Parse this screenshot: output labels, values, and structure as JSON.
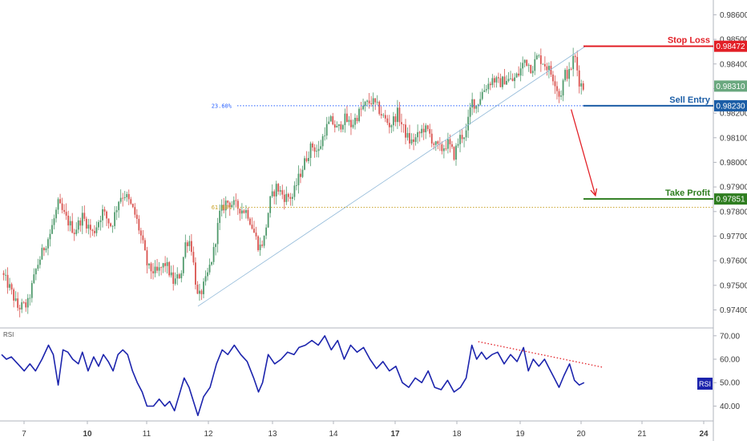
{
  "chart_data": [
    {
      "type": "candlestick",
      "ylim": [
        0.9733,
        0.9866
      ],
      "price_ticks": [
        "0.97400",
        "0.97500",
        "0.97600",
        "0.97700",
        "0.97800",
        "0.97900",
        "0.98000",
        "0.98100",
        "0.98200",
        "0.98300",
        "0.98400",
        "0.98500",
        "0.98600"
      ],
      "x_ticks": [
        {
          "label": "7",
          "bold": false
        },
        {
          "label": "10",
          "bold": true
        },
        {
          "label": "11",
          "bold": false
        },
        {
          "label": "12",
          "bold": false
        },
        {
          "label": "13",
          "bold": false
        },
        {
          "label": "14",
          "bold": false
        },
        {
          "label": "17",
          "bold": true
        },
        {
          "label": "18",
          "bold": false
        },
        {
          "label": "19",
          "bold": false
        },
        {
          "label": "20",
          "bold": false
        },
        {
          "label": "21",
          "bold": false
        },
        {
          "label": "24",
          "bold": true
        }
      ],
      "anchors": [
        [
          0.0,
          0.9755
        ],
        [
          1.0,
          0.9749
        ],
        [
          2.0,
          0.9741
        ],
        [
          3.2,
          0.9742
        ],
        [
          4.3,
          0.9757
        ],
        [
          5.2,
          0.9765
        ],
        [
          6.0,
          0.9771
        ],
        [
          7.0,
          0.9783
        ],
        [
          8.0,
          0.9777
        ],
        [
          9.0,
          0.9772
        ],
        [
          10.0,
          0.9778
        ],
        [
          11.3,
          0.9771
        ],
        [
          12.5,
          0.978
        ],
        [
          13.6,
          0.9774
        ],
        [
          14.6,
          0.9786
        ],
        [
          15.3,
          0.9787
        ],
        [
          16.2,
          0.9781
        ],
        [
          16.6,
          0.9778
        ],
        [
          17.4,
          0.9768
        ],
        [
          18.1,
          0.9757
        ],
        [
          19.2,
          0.9755
        ],
        [
          20.3,
          0.9759
        ],
        [
          21.3,
          0.9751
        ],
        [
          22.2,
          0.9755
        ],
        [
          22.8,
          0.9768
        ],
        [
          23.4,
          0.9768
        ],
        [
          24.3,
          0.9744
        ],
        [
          25.3,
          0.9752
        ],
        [
          26.2,
          0.9763
        ],
        [
          27.0,
          0.9779
        ],
        [
          27.8,
          0.9784
        ],
        [
          28.6,
          0.9783
        ],
        [
          29.6,
          0.9781
        ],
        [
          30.4,
          0.978
        ],
        [
          31.3,
          0.9771
        ],
        [
          31.9,
          0.9765
        ],
        [
          32.5,
          0.9769
        ],
        [
          33.2,
          0.9784
        ],
        [
          34.0,
          0.979
        ],
        [
          35.0,
          0.9786
        ],
        [
          36.0,
          0.9786
        ],
        [
          36.8,
          0.9794
        ],
        [
          37.6,
          0.9801
        ],
        [
          38.4,
          0.9807
        ],
        [
          39.2,
          0.9804
        ],
        [
          40.0,
          0.9813
        ],
        [
          40.8,
          0.9817
        ],
        [
          41.6,
          0.9813
        ],
        [
          42.4,
          0.9818
        ],
        [
          43.3,
          0.9815
        ],
        [
          44.2,
          0.982
        ],
        [
          44.9,
          0.9823
        ],
        [
          45.8,
          0.9825
        ],
        [
          46.6,
          0.9822
        ],
        [
          47.3,
          0.9818
        ],
        [
          48.1,
          0.9815
        ],
        [
          49.0,
          0.982
        ],
        [
          49.8,
          0.9813
        ],
        [
          50.6,
          0.9808
        ],
        [
          51.4,
          0.981
        ],
        [
          52.2,
          0.9814
        ],
        [
          52.9,
          0.9812
        ],
        [
          53.6,
          0.9807
        ],
        [
          54.4,
          0.9805
        ],
        [
          55.2,
          0.9808
        ],
        [
          56.0,
          0.9803
        ],
        [
          56.7,
          0.981
        ],
        [
          57.5,
          0.9812
        ],
        [
          58.2,
          0.9825
        ],
        [
          58.8,
          0.9823
        ],
        [
          59.4,
          0.9828
        ],
        [
          60.0,
          0.9831
        ],
        [
          60.8,
          0.9834
        ],
        [
          61.6,
          0.9832
        ],
        [
          62.4,
          0.9834
        ],
        [
          63.2,
          0.9833
        ],
        [
          64.0,
          0.9836
        ],
        [
          64.8,
          0.9842
        ],
        [
          65.6,
          0.9838
        ],
        [
          66.3,
          0.9843
        ],
        [
          67.0,
          0.9841
        ],
        [
          67.7,
          0.9838
        ],
        [
          68.5,
          0.9833
        ],
        [
          69.1,
          0.9826
        ],
        [
          69.7,
          0.9836
        ],
        [
          70.3,
          0.9836
        ],
        [
          70.9,
          0.9844
        ],
        [
          71.5,
          0.9833
        ],
        [
          72.1,
          0.983
        ]
      ],
      "levels": [
        {
          "name": "Stop Loss",
          "price": 0.98472,
          "label": "0.98472",
          "color": "#e21f26"
        },
        {
          "name": "Sell Entry",
          "price": 0.9823,
          "label": "0.98230",
          "color": "#1b5da6"
        },
        {
          "name": "Take Profit",
          "price": 0.97851,
          "label": "0.97851",
          "color": "#2e7d1f"
        }
      ],
      "fib_levels": [
        {
          "label": "23.60%",
          "price": 0.9823,
          "color": "#2962ff"
        },
        {
          "label": "61.80%",
          "price": 0.97817,
          "color": "#c9a227"
        }
      ],
      "trendline": {
        "from": [
          24.3,
          0.97415
        ],
        "to": [
          72.4,
          0.98475
        ],
        "color": "#8fb8d8"
      },
      "current_price": {
        "label": "0.98310",
        "price": 0.9831,
        "color": "#6aa87f"
      },
      "arrow": {
        "from": [
          70.5,
          0.98215
        ],
        "to": [
          73.5,
          0.97865
        ],
        "color": "#e21f26"
      },
      "colors": {
        "up": "#4f9a6c",
        "down": "#d9534f"
      }
    },
    {
      "type": "line",
      "title": "RSI",
      "ylim": [
        34,
        73
      ],
      "yticks": [
        "40.00",
        "50.00",
        "60.00",
        "70.00"
      ],
      "series": [
        {
          "color": "#1c24ad",
          "points": [
            [
              0.0,
              62
            ],
            [
              0.6,
              60
            ],
            [
              1.2,
              61
            ],
            [
              2.0,
              58
            ],
            [
              2.8,
              55
            ],
            [
              3.5,
              58
            ],
            [
              4.2,
              55
            ],
            [
              5.0,
              60
            ],
            [
              5.8,
              66
            ],
            [
              6.4,
              62
            ],
            [
              7.0,
              49
            ],
            [
              7.6,
              64
            ],
            [
              8.2,
              63
            ],
            [
              8.8,
              60
            ],
            [
              9.5,
              58
            ],
            [
              10.0,
              63
            ],
            [
              10.7,
              55
            ],
            [
              11.4,
              61
            ],
            [
              12.0,
              57
            ],
            [
              12.6,
              62
            ],
            [
              13.2,
              59
            ],
            [
              13.8,
              55
            ],
            [
              14.4,
              62
            ],
            [
              15.0,
              64
            ],
            [
              15.6,
              62
            ],
            [
              16.2,
              55
            ],
            [
              16.8,
              50
            ],
            [
              17.4,
              46
            ],
            [
              18.0,
              40
            ],
            [
              18.8,
              40
            ],
            [
              19.5,
              43
            ],
            [
              20.2,
              40
            ],
            [
              20.8,
              42
            ],
            [
              21.4,
              38
            ],
            [
              22.0,
              45
            ],
            [
              22.6,
              52
            ],
            [
              23.2,
              48
            ],
            [
              24.3,
              36
            ],
            [
              25.0,
              44
            ],
            [
              25.8,
              48
            ],
            [
              26.6,
              58
            ],
            [
              27.3,
              64
            ],
            [
              28.0,
              62
            ],
            [
              28.8,
              66
            ],
            [
              29.6,
              62
            ],
            [
              30.4,
              59
            ],
            [
              31.2,
              52
            ],
            [
              31.8,
              46
            ],
            [
              32.3,
              50
            ],
            [
              33.0,
              62
            ],
            [
              33.8,
              58
            ],
            [
              34.6,
              60
            ],
            [
              35.4,
              63
            ],
            [
              36.2,
              62
            ],
            [
              36.8,
              65
            ],
            [
              37.6,
              66
            ],
            [
              38.4,
              68
            ],
            [
              39.2,
              66
            ],
            [
              40.0,
              70
            ],
            [
              40.8,
              64
            ],
            [
              41.6,
              68
            ],
            [
              42.4,
              60
            ],
            [
              43.2,
              66
            ],
            [
              44.0,
              63
            ],
            [
              44.8,
              65
            ],
            [
              45.6,
              60
            ],
            [
              46.4,
              56
            ],
            [
              47.2,
              59
            ],
            [
              48.0,
              55
            ],
            [
              48.8,
              57
            ],
            [
              49.6,
              50
            ],
            [
              50.4,
              48
            ],
            [
              51.2,
              52
            ],
            [
              52.0,
              50
            ],
            [
              52.8,
              55
            ],
            [
              53.6,
              48
            ],
            [
              54.4,
              47
            ],
            [
              55.2,
              51
            ],
            [
              56.0,
              46
            ],
            [
              56.8,
              48
            ],
            [
              57.5,
              52
            ],
            [
              58.2,
              66
            ],
            [
              58.8,
              60
            ],
            [
              59.4,
              63
            ],
            [
              60.0,
              60
            ],
            [
              60.7,
              62
            ],
            [
              61.4,
              63
            ],
            [
              62.2,
              58
            ],
            [
              63.0,
              62
            ],
            [
              63.8,
              59
            ],
            [
              64.6,
              65
            ],
            [
              65.2,
              55
            ],
            [
              65.8,
              60
            ],
            [
              66.5,
              57
            ],
            [
              67.2,
              60
            ],
            [
              67.8,
              56
            ],
            [
              68.4,
              52
            ],
            [
              69.0,
              48
            ],
            [
              69.6,
              53
            ],
            [
              70.3,
              58
            ],
            [
              70.9,
              51
            ],
            [
              71.5,
              49
            ],
            [
              72.1,
              50
            ]
          ]
        }
      ],
      "divergence_line": {
        "from": [
          59.0,
          67.5
        ],
        "to": [
          74.5,
          56.5
        ],
        "color": "#e21f26"
      },
      "current_label": "RSI"
    }
  ]
}
